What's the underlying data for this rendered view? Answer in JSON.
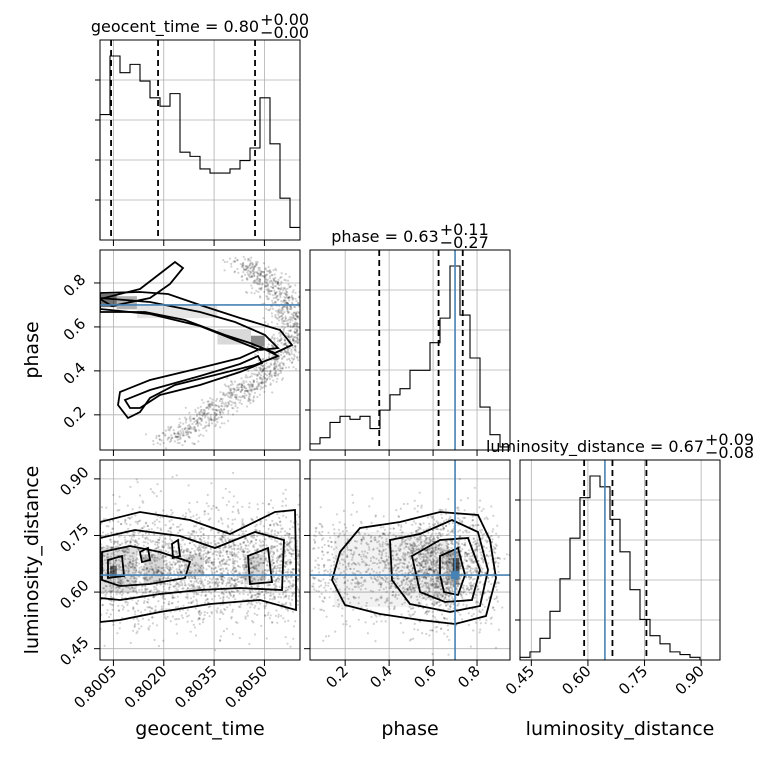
{
  "chart_data": {
    "type": "corner",
    "parameters": [
      "geocent_time",
      "phase",
      "luminosity_distance"
    ],
    "titles": [
      {
        "param": "geocent_time",
        "prefix": "geocent_time = ",
        "value": "0.80",
        "plus": "+0.00",
        "minus": "−0.00"
      },
      {
        "param": "phase",
        "prefix": "phase = ",
        "value": "0.63",
        "plus": "+0.11",
        "minus": "−0.27"
      },
      {
        "param": "luminosity_distance",
        "prefix": "luminosity_distance = ",
        "value": "0.67",
        "plus": "+0.09",
        "minus": "−0.08"
      }
    ],
    "xlabels": [
      "geocent_time",
      "phase",
      "luminosity_distance"
    ],
    "ylabels": [
      "",
      "phase",
      "luminosity_distance"
    ],
    "ranges": {
      "geocent_time": [
        0.8001,
        0.80606
      ],
      "phase": [
        0.04,
        0.95
      ],
      "luminosity_distance": [
        0.42,
        0.95
      ]
    },
    "ticks": {
      "geocent_time": [
        "0.8005",
        "0.8020",
        "0.8035",
        "0.8050"
      ],
      "phase": [
        "0.2",
        "0.4",
        "0.6",
        "0.8"
      ],
      "luminosity_distance": [
        "0.45",
        "0.60",
        "0.75",
        "0.90"
      ]
    },
    "truths": {
      "geocent_time": null,
      "phase": 0.7,
      "luminosity_distance": 0.645
    },
    "quantiles": {
      "geocent_time": [
        0.80043,
        0.80183,
        0.80472
      ],
      "phase": [
        0.355,
        0.625,
        0.735
      ],
      "luminosity_distance": [
        0.59,
        0.665,
        0.755
      ]
    },
    "histograms": {
      "geocent_time": {
        "bins": 20,
        "counts": [
          30,
          44,
          40,
          42,
          38,
          34,
          32,
          35,
          21,
          20,
          17,
          16,
          16,
          17,
          19,
          22,
          34,
          23,
          10,
          3
        ]
      },
      "phase": {
        "bins": 20,
        "counts": [
          2,
          4,
          9,
          11,
          10,
          11,
          7,
          13,
          18,
          20,
          26,
          26,
          35,
          43,
          60,
          44,
          30,
          14,
          5,
          1
        ]
      },
      "luminosity_distance": {
        "bins": 20,
        "counts": [
          1,
          3,
          8,
          18,
          30,
          45,
          60,
          68,
          64,
          52,
          40,
          26,
          15,
          9,
          6,
          3,
          2,
          1,
          0,
          0
        ]
      }
    },
    "grid": true
  }
}
